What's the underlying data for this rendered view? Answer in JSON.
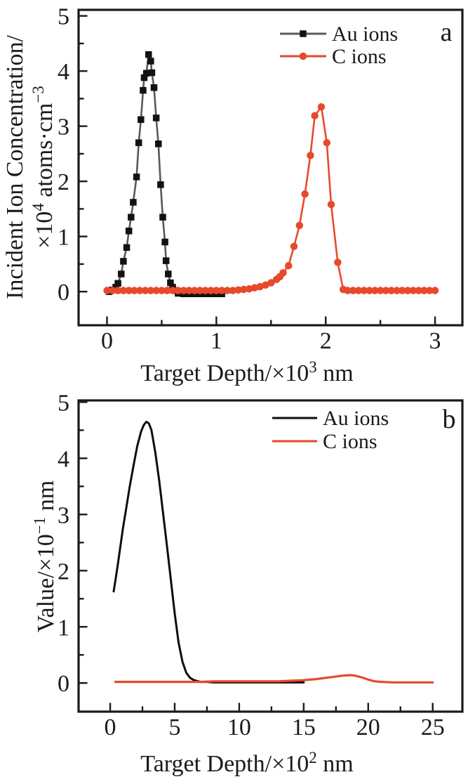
{
  "figure": {
    "background": "#ffffff",
    "text_color": "#1a1a1a",
    "panel_labels": [
      "a",
      "b"
    ]
  },
  "chart_data": [
    {
      "type": "line",
      "panel_label": "a",
      "xlabel": "Target Depth/×10³ nm",
      "ylabel": "Incident Ion Concentration/ ×10⁴ atoms·cm⁻³",
      "xlabel_parts": [
        {
          "t": "Target Depth/×10"
        },
        {
          "t": "3",
          "sup": true
        },
        {
          "t": " nm"
        }
      ],
      "ylabel_lines": [
        [
          {
            "t": "Incident Ion Concentration/"
          }
        ],
        [
          {
            "t": "×10"
          },
          {
            "t": "4",
            "sup": true
          },
          {
            "t": " atoms·cm"
          },
          {
            "t": "−3",
            "sup": true
          }
        ]
      ],
      "xlim": [
        -0.26,
        3.25
      ],
      "ylim": [
        -0.61,
        5.11
      ],
      "x_ticks": [
        0,
        1,
        2,
        3
      ],
      "y_ticks": [
        0,
        1,
        2,
        3,
        4,
        5
      ],
      "x_minor_step": 0.5,
      "y_minor_step": 0.5,
      "grid": false,
      "legend_position": "inside-top",
      "series": [
        {
          "name": "Au ions",
          "line_color": "#595959",
          "line_width": 2.6,
          "marker": "square",
          "marker_color": "#121212",
          "marker_size": 9.5,
          "points": [
            [
              0.02,
              0.0
            ],
            [
              0.05,
              0.03
            ],
            [
              0.08,
              0.08
            ],
            [
              0.1,
              0.15
            ],
            [
              0.13,
              0.32
            ],
            [
              0.15,
              0.55
            ],
            [
              0.18,
              0.8
            ],
            [
              0.2,
              1.1
            ],
            [
              0.22,
              1.35
            ],
            [
              0.24,
              1.62
            ],
            [
              0.27,
              2.08
            ],
            [
              0.29,
              2.7
            ],
            [
              0.31,
              3.12
            ],
            [
              0.33,
              3.65
            ],
            [
              0.34,
              3.88
            ],
            [
              0.36,
              3.96
            ],
            [
              0.38,
              4.3
            ],
            [
              0.4,
              4.18
            ],
            [
              0.41,
              3.97
            ],
            [
              0.43,
              3.7
            ],
            [
              0.45,
              3.15
            ],
            [
              0.47,
              2.68
            ],
            [
              0.49,
              1.94
            ],
            [
              0.51,
              1.35
            ],
            [
              0.53,
              0.9
            ],
            [
              0.54,
              0.56
            ],
            [
              0.56,
              0.32
            ],
            [
              0.58,
              0.16
            ],
            [
              0.6,
              0.08
            ],
            [
              0.62,
              0.02
            ],
            [
              0.65,
              -0.03
            ],
            [
              0.7,
              -0.04
            ],
            [
              0.75,
              -0.04
            ],
            [
              0.8,
              -0.04
            ],
            [
              0.85,
              -0.04
            ],
            [
              0.9,
              -0.04
            ],
            [
              0.95,
              -0.04
            ],
            [
              1.0,
              -0.04
            ],
            [
              1.05,
              -0.04
            ]
          ]
        },
        {
          "name": "C ions",
          "line_color": "#e64a2a",
          "line_width": 2.6,
          "marker": "circle",
          "marker_color": "#e64a2a",
          "marker_size": 10.5,
          "points": [
            [
              0.0,
              0.02
            ],
            [
              0.05,
              0.02
            ],
            [
              0.1,
              0.02
            ],
            [
              0.15,
              0.02
            ],
            [
              0.2,
              0.02
            ],
            [
              0.25,
              0.02
            ],
            [
              0.3,
              0.02
            ],
            [
              0.35,
              0.02
            ],
            [
              0.4,
              0.02
            ],
            [
              0.45,
              0.02
            ],
            [
              0.5,
              0.02
            ],
            [
              0.55,
              0.02
            ],
            [
              0.6,
              0.02
            ],
            [
              0.65,
              0.02
            ],
            [
              0.7,
              0.02
            ],
            [
              0.75,
              0.02
            ],
            [
              0.8,
              0.02
            ],
            [
              0.85,
              0.02
            ],
            [
              0.9,
              0.02
            ],
            [
              0.95,
              0.02
            ],
            [
              1.0,
              0.02
            ],
            [
              1.05,
              0.02
            ],
            [
              1.1,
              0.02
            ],
            [
              1.15,
              0.02
            ],
            [
              1.2,
              0.03
            ],
            [
              1.25,
              0.04
            ],
            [
              1.3,
              0.05
            ],
            [
              1.35,
              0.07
            ],
            [
              1.4,
              0.09
            ],
            [
              1.45,
              0.12
            ],
            [
              1.5,
              0.16
            ],
            [
              1.55,
              0.22
            ],
            [
              1.58,
              0.27
            ],
            [
              1.61,
              0.34
            ],
            [
              1.66,
              0.47
            ],
            [
              1.71,
              0.82
            ],
            [
              1.76,
              1.2
            ],
            [
              1.81,
              1.77
            ],
            [
              1.86,
              2.47
            ],
            [
              1.9,
              3.19
            ],
            [
              1.96,
              3.35
            ],
            [
              2.01,
              2.7
            ],
            [
              2.05,
              1.58
            ],
            [
              2.11,
              0.53
            ],
            [
              2.16,
              0.04
            ],
            [
              2.2,
              0.02
            ],
            [
              2.25,
              0.02
            ],
            [
              2.3,
              0.02
            ],
            [
              2.35,
              0.02
            ],
            [
              2.4,
              0.02
            ],
            [
              2.45,
              0.02
            ],
            [
              2.5,
              0.02
            ],
            [
              2.55,
              0.02
            ],
            [
              2.6,
              0.02
            ],
            [
              2.65,
              0.02
            ],
            [
              2.7,
              0.02
            ],
            [
              2.75,
              0.02
            ],
            [
              2.8,
              0.02
            ],
            [
              2.85,
              0.02
            ],
            [
              2.9,
              0.02
            ],
            [
              2.95,
              0.02
            ],
            [
              3.0,
              0.02
            ]
          ]
        }
      ]
    },
    {
      "type": "line",
      "panel_label": "b",
      "xlabel": "Target Depth/×10² nm",
      "ylabel": "Value/×10⁻¹ nm",
      "xlabel_parts": [
        {
          "t": "Target Depth/×10"
        },
        {
          "t": "2",
          "sup": true
        },
        {
          "t": " nm"
        }
      ],
      "ylabel_lines": [
        [
          {
            "t": "Value/×10"
          },
          {
            "t": "−1",
            "sup": true
          },
          {
            "t": " nm"
          }
        ]
      ],
      "xlim": [
        -2.45,
        27.3
      ],
      "ylim": [
        -0.51,
        5.03
      ],
      "x_ticks": [
        0,
        5,
        10,
        15,
        20,
        25
      ],
      "y_ticks": [
        0,
        1,
        2,
        3,
        4,
        5
      ],
      "x_minor_step": 2.5,
      "y_minor_step": 0.5,
      "grid": false,
      "legend_position": "inside-top",
      "series": [
        {
          "name": "Au ions",
          "line_color": "#0d0d0d",
          "line_width": 3,
          "marker": "none",
          "points": [
            [
              0.27,
              1.63
            ],
            [
              0.4,
              1.82
            ],
            [
              0.6,
              2.12
            ],
            [
              0.8,
              2.45
            ],
            [
              1.0,
              2.77
            ],
            [
              1.2,
              3.05
            ],
            [
              1.5,
              3.48
            ],
            [
              1.8,
              3.86
            ],
            [
              2.1,
              4.22
            ],
            [
              2.4,
              4.48
            ],
            [
              2.6,
              4.59
            ],
            [
              2.8,
              4.65
            ],
            [
              3.0,
              4.62
            ],
            [
              3.2,
              4.5
            ],
            [
              3.5,
              4.1
            ],
            [
              3.8,
              3.6
            ],
            [
              4.1,
              3.02
            ],
            [
              4.4,
              2.44
            ],
            [
              4.7,
              1.84
            ],
            [
              5.0,
              1.24
            ],
            [
              5.3,
              0.72
            ],
            [
              5.6,
              0.38
            ],
            [
              5.9,
              0.18
            ],
            [
              6.2,
              0.09
            ],
            [
              6.5,
              0.05
            ],
            [
              7.0,
              0.02
            ],
            [
              7.5,
              0.02
            ],
            [
              8.0,
              0.01
            ],
            [
              9.0,
              0.01
            ],
            [
              10.0,
              0.01
            ],
            [
              11.0,
              0.01
            ],
            [
              12.0,
              0.01
            ],
            [
              13.0,
              0.01
            ],
            [
              14.0,
              0.01
            ],
            [
              15.0,
              0.01
            ]
          ]
        },
        {
          "name": "C ions",
          "line_color": "#e64a2a",
          "line_width": 3.2,
          "marker": "none",
          "points": [
            [
              0.4,
              0.02
            ],
            [
              1,
              0.02
            ],
            [
              2,
              0.02
            ],
            [
              3,
              0.02
            ],
            [
              4,
              0.02
            ],
            [
              5,
              0.02
            ],
            [
              6,
              0.02
            ],
            [
              7,
              0.02
            ],
            [
              8,
              0.03
            ],
            [
              9,
              0.03
            ],
            [
              10,
              0.03
            ],
            [
              11,
              0.03
            ],
            [
              12,
              0.03
            ],
            [
              13,
              0.03
            ],
            [
              14,
              0.04
            ],
            [
              15,
              0.05
            ],
            [
              16,
              0.07
            ],
            [
              17,
              0.1
            ],
            [
              18,
              0.13
            ],
            [
              18.6,
              0.14
            ],
            [
              19,
              0.13
            ],
            [
              19.5,
              0.1
            ],
            [
              20,
              0.06
            ],
            [
              20.5,
              0.03
            ],
            [
              21,
              0.02
            ],
            [
              22,
              0.01
            ],
            [
              23,
              0.01
            ],
            [
              24,
              0.01
            ],
            [
              25,
              0.01
            ]
          ]
        }
      ]
    }
  ]
}
